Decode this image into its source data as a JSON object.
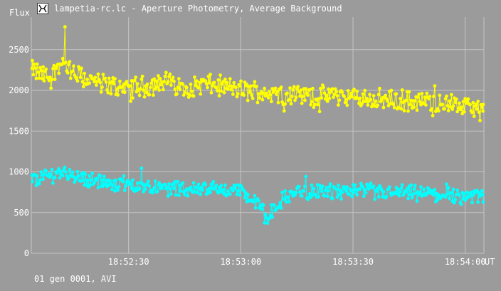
{
  "window": {
    "title": "lampetia-rc.lc - Aperture Photometry, Average Background",
    "icon": "app-logo-icon"
  },
  "footer": {
    "status": "01 gen 0001, AVI"
  },
  "chart_data": {
    "type": "line",
    "ylabel": "Flux",
    "xunit": "UT",
    "ylim": [
      0,
      2900
    ],
    "xlim": [
      "18:52:04",
      "18:54:05"
    ],
    "yticks": [
      0,
      500,
      1000,
      1500,
      2000,
      2500
    ],
    "xticks": [
      "18:52:30",
      "18:53:00",
      "18:53:30",
      "18:54:00"
    ],
    "grid": true,
    "colors": {
      "background": "#9b9b9b",
      "grid": "#c4c4c4",
      "series_1": "#ffff00",
      "series_2": "#00ffff"
    },
    "series": [
      {
        "color": "#ffff00",
        "x": [
          "18:52:04",
          "18:52:09",
          "18:52:12",
          "18:52:15",
          "18:52:20",
          "18:52:25",
          "18:52:30",
          "18:52:35",
          "18:52:40",
          "18:52:45",
          "18:52:50",
          "18:52:55",
          "18:53:00",
          "18:53:05",
          "18:53:10",
          "18:53:15",
          "18:53:20",
          "18:53:25",
          "18:53:30",
          "18:53:35",
          "18:53:40",
          "18:53:45",
          "18:53:50",
          "18:53:55",
          "18:54:00",
          "18:54:05"
        ],
        "y": [
          2250,
          2150,
          2350,
          2200,
          2120,
          2060,
          2040,
          2050,
          2120,
          2020,
          2080,
          2050,
          2000,
          1990,
          1960,
          1950,
          1920,
          1950,
          1910,
          1900,
          1880,
          1870,
          1860,
          1840,
          1800,
          1750
        ],
        "spread": 110,
        "max_point": {
          "x": "18:52:13",
          "y": 2780
        }
      },
      {
        "color": "#00ffff",
        "x": [
          "18:52:04",
          "18:52:09",
          "18:52:12",
          "18:52:15",
          "18:52:20",
          "18:52:25",
          "18:52:30",
          "18:52:35",
          "18:52:40",
          "18:52:45",
          "18:52:50",
          "18:52:55",
          "18:53:00",
          "18:53:05",
          "18:53:07",
          "18:53:10",
          "18:53:15",
          "18:53:20",
          "18:53:25",
          "18:53:30",
          "18:53:35",
          "18:53:40",
          "18:53:45",
          "18:53:50",
          "18:53:55",
          "18:54:00",
          "18:54:05"
        ],
        "y": [
          900,
          960,
          1000,
          960,
          900,
          860,
          850,
          830,
          800,
          790,
          800,
          790,
          770,
          580,
          420,
          620,
          760,
          760,
          760,
          760,
          750,
          740,
          740,
          720,
          720,
          700,
          690
        ],
        "spread": 85
      }
    ]
  }
}
